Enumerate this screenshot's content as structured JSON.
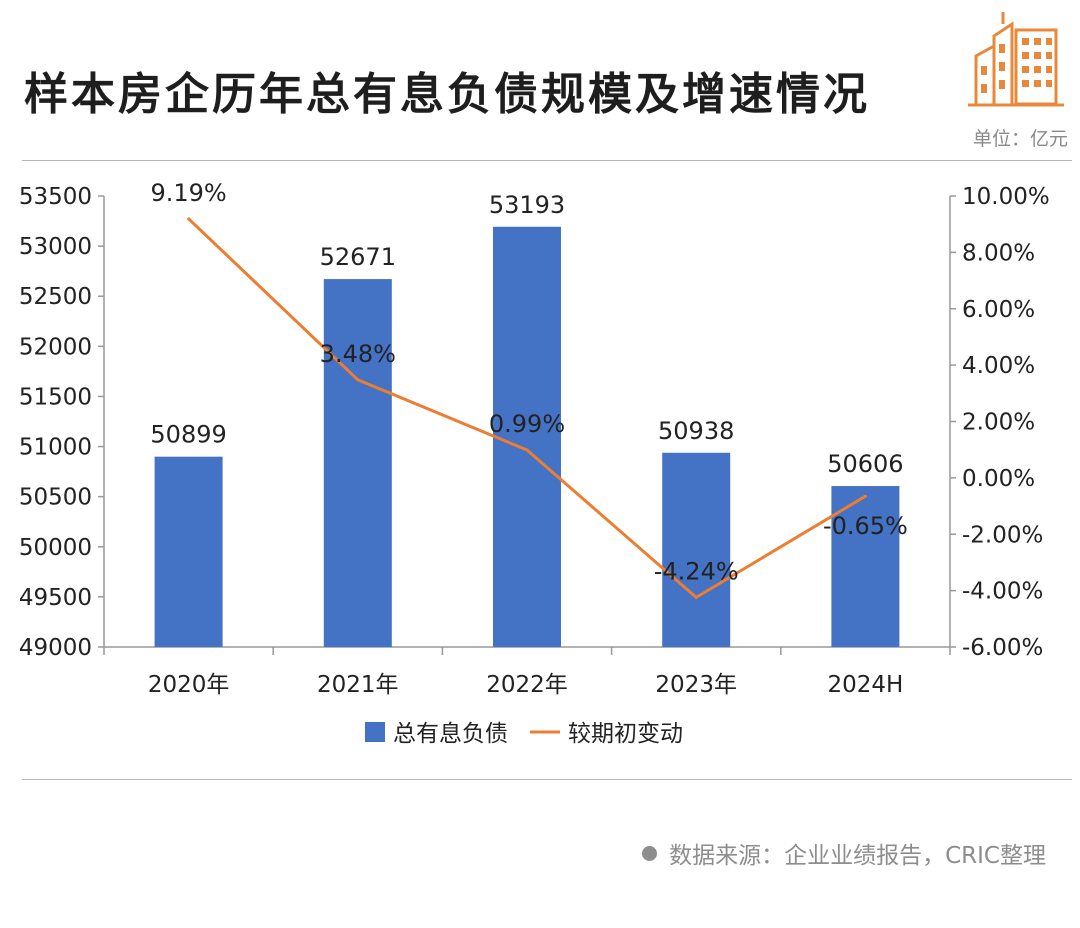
{
  "header": {
    "title": "样本房企历年总有息负债规模及增速情况",
    "unit": "单位：亿元",
    "logo_icon": "building-logo-icon",
    "accent_color": "#e8883a"
  },
  "footer": {
    "source": "数据来源：企业业绩报告，CRIC整理"
  },
  "chart_data": {
    "type": "bar",
    "categories": [
      "2020年",
      "2021年",
      "2022年",
      "2023年",
      "2024H"
    ],
    "series": [
      {
        "name": "总有息负债",
        "type": "bar",
        "axis": "left",
        "color": "#4472c4",
        "values": [
          50899,
          52671,
          53193,
          50938,
          50606
        ],
        "labels": [
          "50899",
          "52671",
          "53193",
          "50938",
          "50606"
        ]
      },
      {
        "name": "较期初变动",
        "type": "line",
        "axis": "right",
        "color": "#ed7d31",
        "values": [
          9.19,
          3.48,
          0.99,
          -4.24,
          -0.65
        ],
        "labels": [
          "9.19%",
          "3.48%",
          "0.99%",
          "-4.24%",
          "-0.65%"
        ]
      }
    ],
    "y_left": {
      "ylim": [
        49000,
        53500
      ],
      "ticks": [
        49000,
        49500,
        50000,
        50500,
        51000,
        51500,
        52000,
        52500,
        53000,
        53500
      ],
      "tick_labels": [
        "49000",
        "49500",
        "50000",
        "50500",
        "51000",
        "51500",
        "52000",
        "52500",
        "53000",
        "53500"
      ]
    },
    "y_right": {
      "ylim": [
        -6,
        10
      ],
      "ticks": [
        -6,
        -4,
        -2,
        0,
        2,
        4,
        6,
        8,
        10
      ],
      "tick_labels": [
        "-6.00%",
        "-4.00%",
        "-2.00%",
        "0.00%",
        "2.00%",
        "4.00%",
        "6.00%",
        "8.00%",
        "10.00%"
      ]
    },
    "grid": false,
    "legend_position": "bottom"
  }
}
